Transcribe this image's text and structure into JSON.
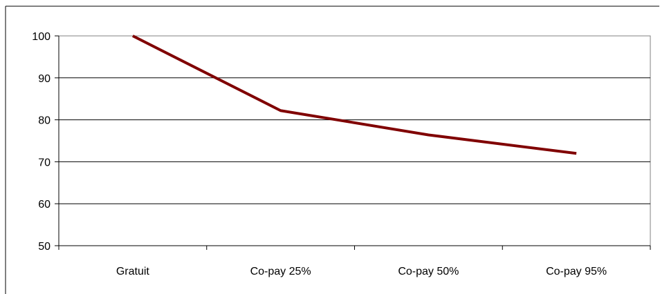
{
  "chart_data": {
    "type": "line",
    "categories": [
      "Gratuit",
      "Co-pay 25%",
      "Co-pay 50%",
      "Co-pay 95%"
    ],
    "series": [
      {
        "values": [
          100,
          82.2,
          76.4,
          72.0
        ],
        "color": "#800000"
      }
    ],
    "ylim": [
      50,
      100
    ],
    "yticks": [
      "50",
      "60",
      "70",
      "80",
      "90",
      "100"
    ],
    "grid": true,
    "legend": "none"
  }
}
